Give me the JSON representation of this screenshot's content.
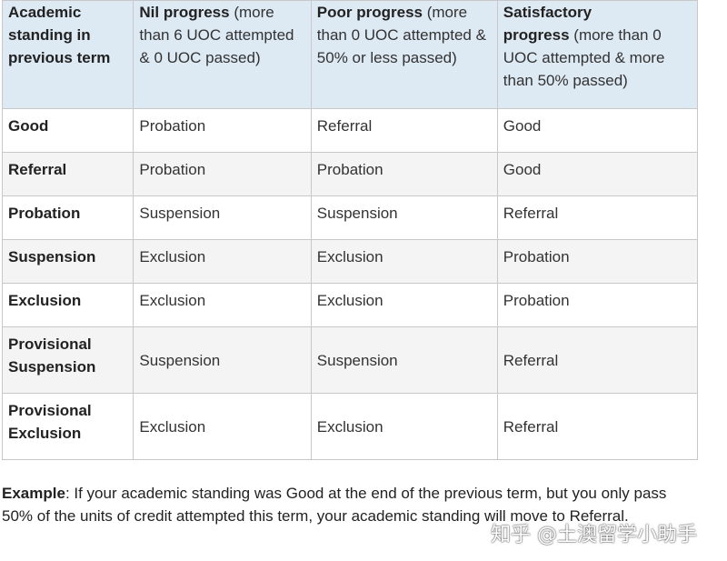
{
  "table": {
    "header": [
      {
        "strong": "Academic standing in previous term",
        "text": ""
      },
      {
        "strong": "Nil progress",
        "text": "(more than 6 UOC attempted & 0 UOC passed)"
      },
      {
        "strong": "Poor progress",
        "text": "(more than 0 UOC attempted & 50% or less passed)"
      },
      {
        "strong": "Satisfactory progress",
        "text": "(more than 0 UOC attempted & more than 50% passed)"
      }
    ],
    "rows": [
      [
        "Good",
        "Probation",
        "Referral",
        "Good"
      ],
      [
        "Referral",
        "Probation",
        "Probation",
        "Good"
      ],
      [
        "Probation",
        "Suspension",
        "Suspension",
        "Referral"
      ],
      [
        "Suspension",
        "Exclusion",
        "Exclusion",
        "Probation"
      ],
      [
        "Exclusion",
        "Exclusion",
        "Exclusion",
        "Probation"
      ],
      [
        "Provisional Suspension",
        "Suspension",
        "Suspension",
        "Referral"
      ],
      [
        "Provisional Exclusion",
        "Exclusion",
        "Exclusion",
        "Referral"
      ]
    ]
  },
  "example": {
    "lead": "Example",
    "text": ": If your academic standing was Good at the end of the previous term, but you only pass 50% of the units of credit attempted this term, your academic standing will move to Referral."
  },
  "watermark": "知乎 @土澳留学小助手"
}
